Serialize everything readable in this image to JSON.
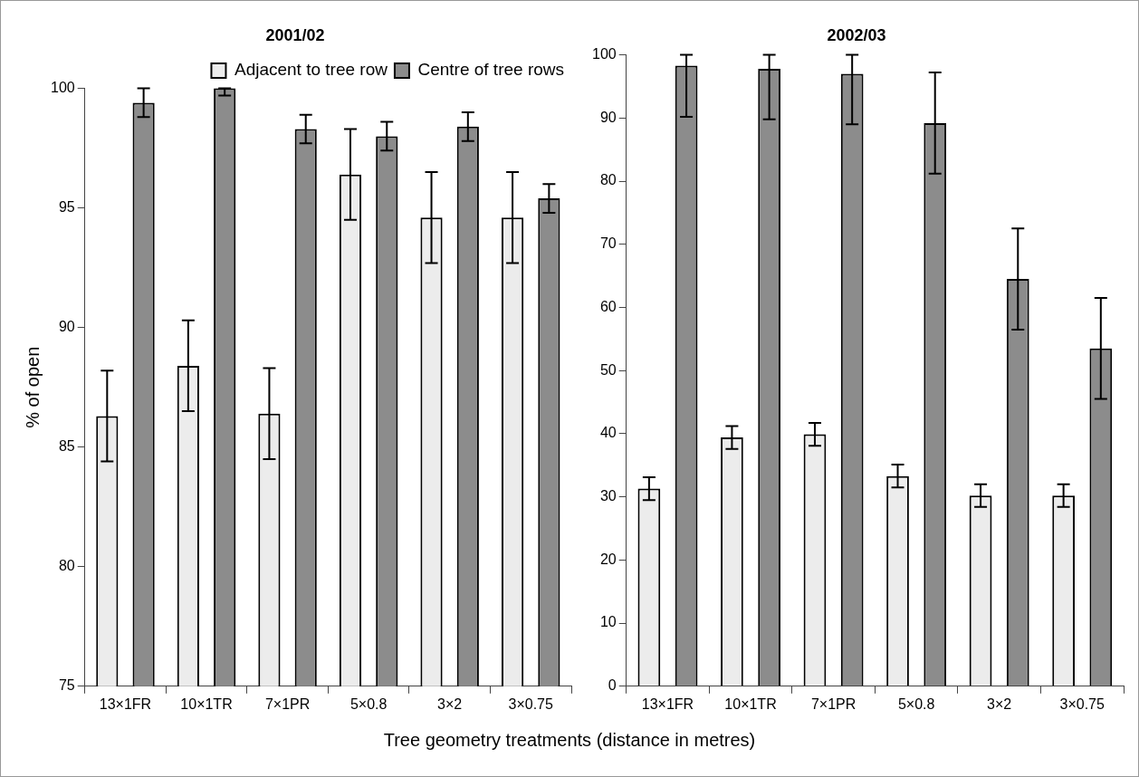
{
  "chart_data": [
    {
      "type": "bar",
      "title": "2001/02",
      "ylabel": "% of open",
      "xlabel": "Tree geometry treatments (distance in metres)",
      "categories": [
        "13×1FR",
        "10×1TR",
        "7×1PR",
        "5×0.8",
        "3×2",
        "3×0.75"
      ],
      "series": [
        {
          "name": "Adjacent to tree row",
          "color": "#ececec",
          "values": [
            86.3,
            88.4,
            86.4,
            96.4,
            94.6,
            94.6
          ],
          "errors": [
            1.9,
            1.9,
            1.9,
            1.9,
            1.9,
            1.9
          ]
        },
        {
          "name": "Centre of tree rows",
          "color": "#8c8c8c",
          "values": [
            99.4,
            100,
            98.3,
            98.0,
            98.4,
            95.4
          ],
          "errors": [
            0.6,
            [
              99.7,
              100
            ],
            0.6,
            0.6,
            0.6,
            0.6
          ]
        }
      ],
      "ylim": [
        75,
        100
      ],
      "yticks": [
        75,
        80,
        85,
        90,
        95,
        100
      ],
      "legend": "top right",
      "grid": false
    },
    {
      "type": "bar",
      "title": "2002/03",
      "categories": [
        "13×1FR",
        "10×1TR",
        "7×1PR",
        "5×0.8",
        "3×2",
        "3×0.75"
      ],
      "series": [
        {
          "color": "#ececec",
          "values": [
            31.3,
            39.4,
            39.9,
            33.3,
            30.2,
            30.2
          ],
          "errors": [
            1.8,
            1.8,
            1.8,
            1.8,
            1.8,
            1.8
          ]
        },
        {
          "color": "#8c8c8c",
          "values": [
            98.3,
            97.8,
            97.0,
            89.2,
            64.5,
            53.5
          ],
          "errors": [
            [
              90.2,
              100
            ],
            [
              89.8,
              100
            ],
            [
              89,
              100
            ],
            8,
            8,
            8
          ]
        }
      ],
      "ylim": [
        0,
        100
      ],
      "yticks": [
        0,
        10,
        20,
        30,
        40,
        50,
        60,
        70,
        80,
        90,
        100
      ],
      "grid": false
    }
  ]
}
